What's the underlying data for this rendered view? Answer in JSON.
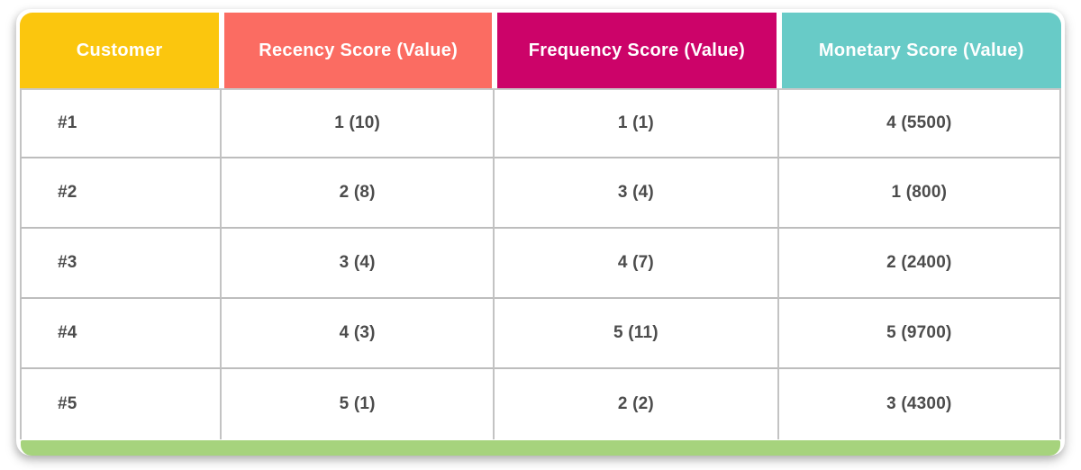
{
  "header": {
    "cells": [
      {
        "label": "Customer",
        "bg": "#FBC60E"
      },
      {
        "label": "Recency Score (Value)",
        "bg": "#FB6C62"
      },
      {
        "label": "Frequency Score (Value)",
        "bg": "#CC0369"
      },
      {
        "label": "Monetary Score (Value)",
        "bg": "#68CBC7"
      }
    ]
  },
  "rows": [
    {
      "customer": "#1",
      "recency": "1 (10)",
      "frequency": "1 (1)",
      "monetary": "4 (5500)"
    },
    {
      "customer": "#2",
      "recency": "2 (8)",
      "frequency": "3 (4)",
      "monetary": "1 (800)"
    },
    {
      "customer": "#3",
      "recency": "3 (4)",
      "frequency": "4 (7)",
      "monetary": "2 (2400)"
    },
    {
      "customer": "#4",
      "recency": "4 (3)",
      "frequency": "5 (11)",
      "monetary": "5 (9700)"
    },
    {
      "customer": "#5",
      "recency": "5 (1)",
      "frequency": "2 (2)",
      "monetary": "3 (4300)"
    }
  ],
  "footer": {
    "bar_color": "#A6D37D"
  },
  "chart_data": {
    "type": "table",
    "columns": [
      "Customer",
      "Recency Score (Value)",
      "Frequency Score (Value)",
      "Monetary Score (Value)"
    ],
    "rows": [
      [
        "#1",
        "1 (10)",
        "1 (1)",
        "4 (5500)"
      ],
      [
        "#2",
        "2 (8)",
        "3 (4)",
        "1 (800)"
      ],
      [
        "#3",
        "3 (4)",
        "4 (7)",
        "2 (2400)"
      ],
      [
        "#4",
        "4 (3)",
        "5 (11)",
        "5 (9700)"
      ],
      [
        "#5",
        "5 (1)",
        "2 (2)",
        "3 (4300)"
      ]
    ],
    "header_colors": [
      "#FBC60E",
      "#FB6C62",
      "#CC0369",
      "#68CBC7"
    ],
    "footer_bar_color": "#A6D37D"
  }
}
